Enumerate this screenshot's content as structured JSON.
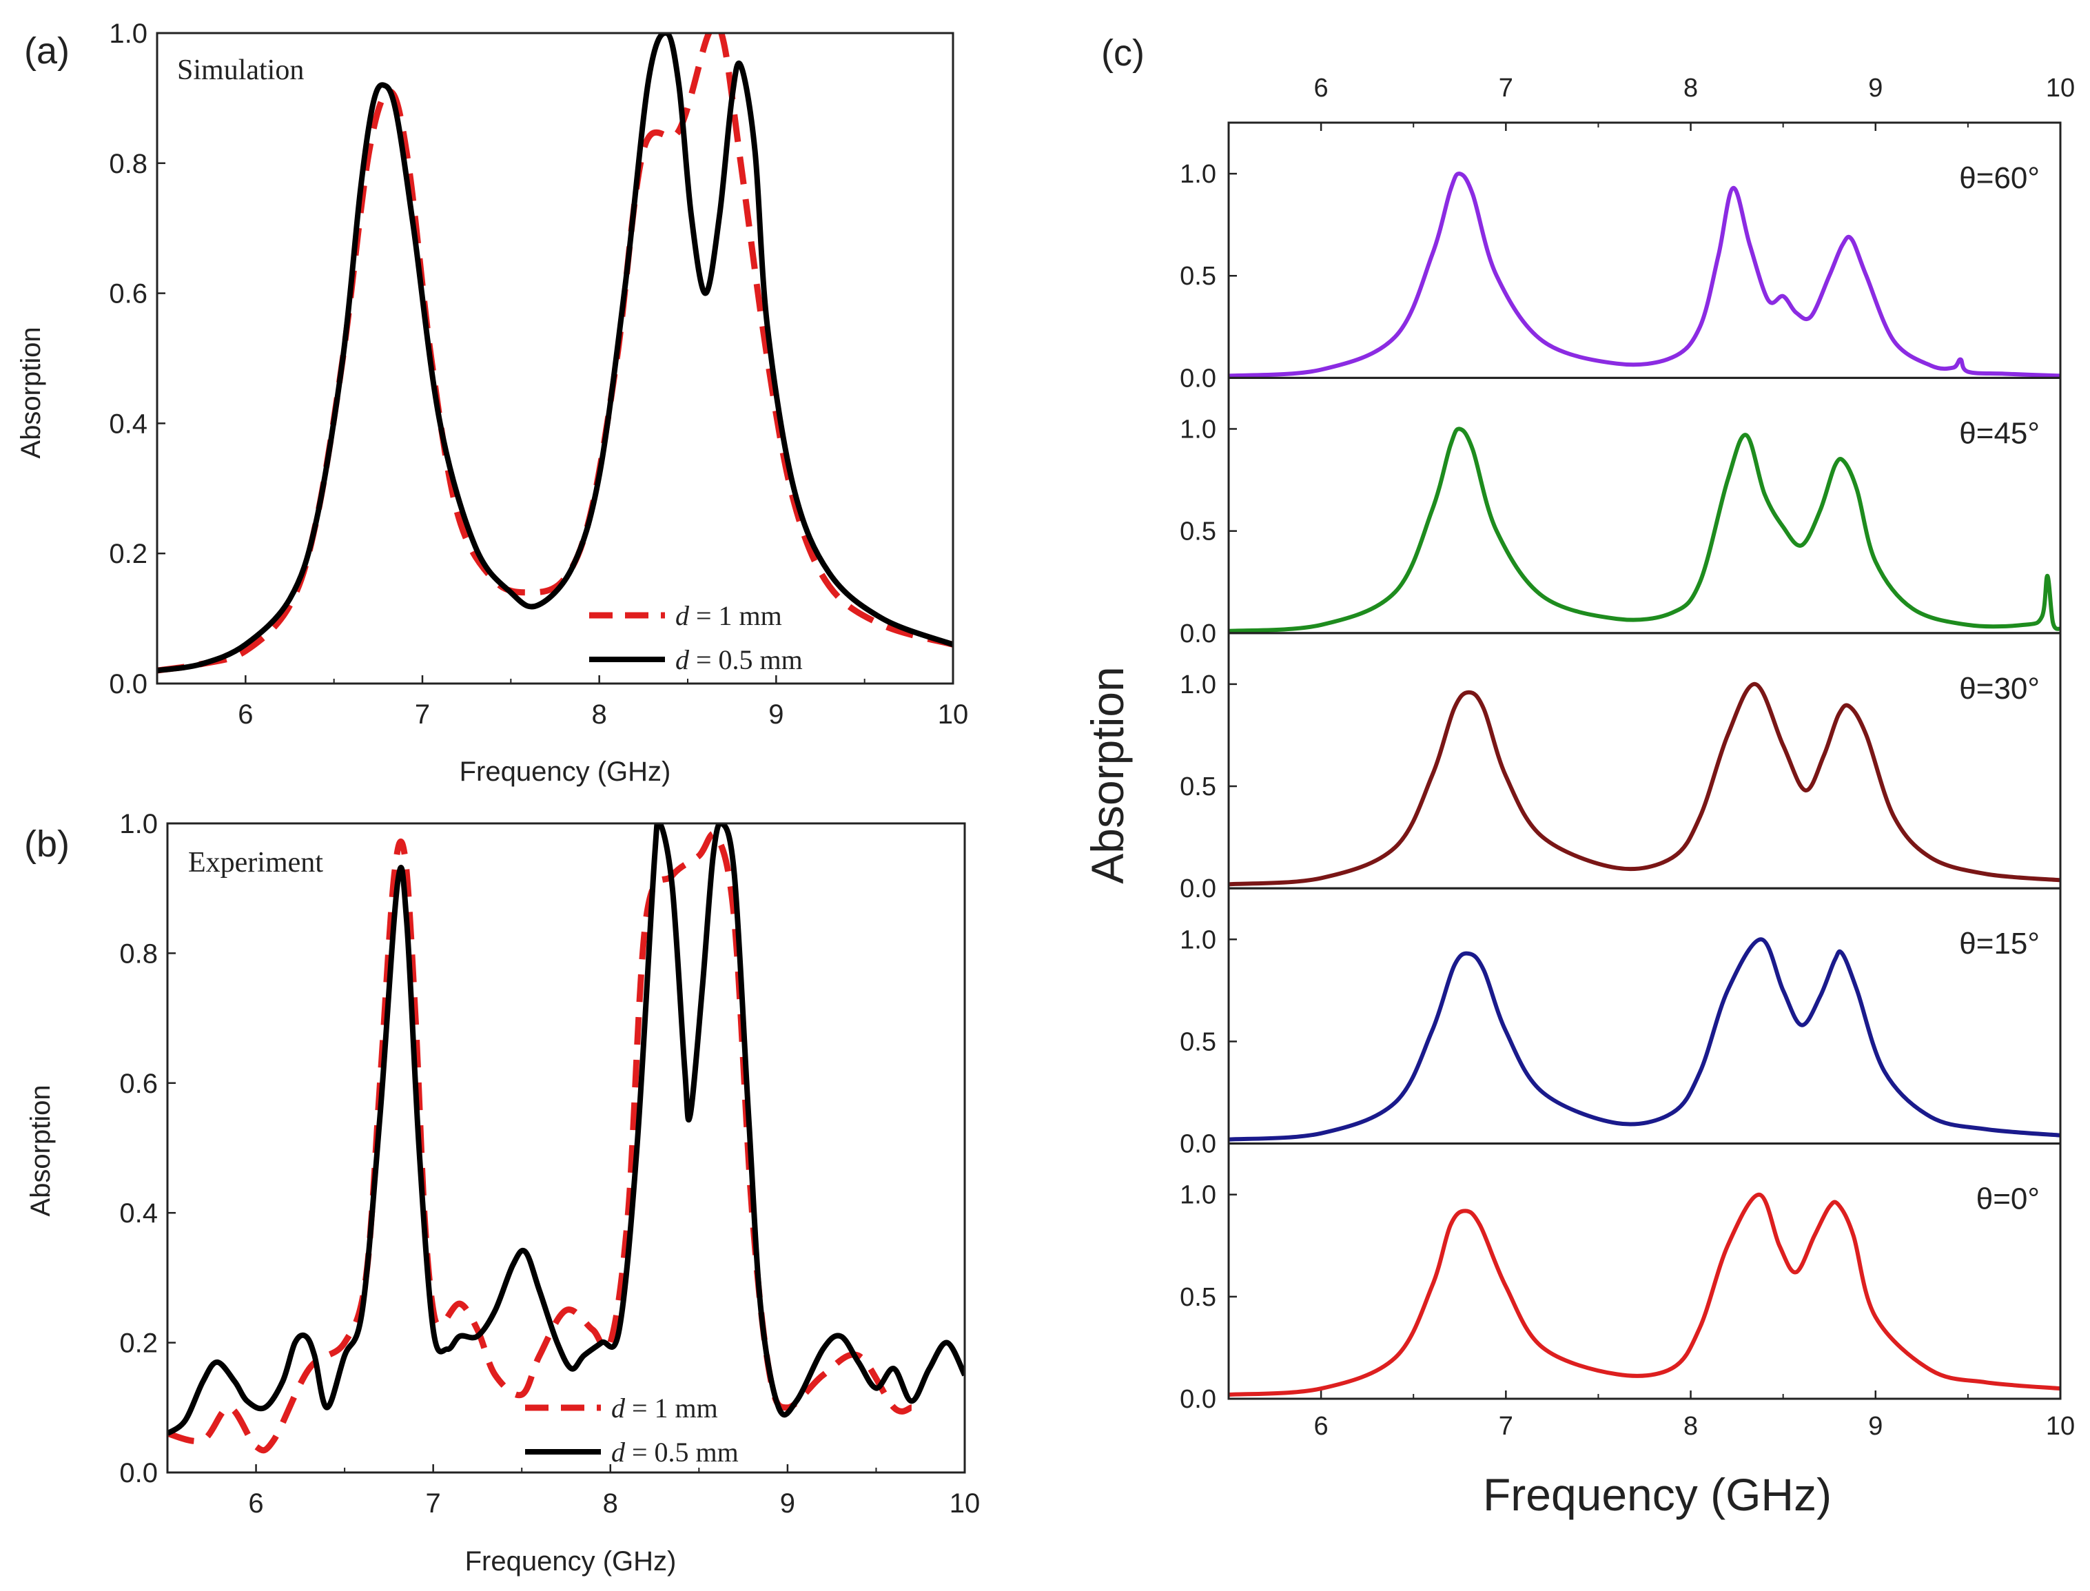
{
  "chart_data": [
    {
      "id": "a",
      "type": "line",
      "panel_label": "(a)",
      "annotation": "Simulation",
      "xlabel": "Frequency (GHz)",
      "ylabel": "Absorption",
      "xlim": [
        5.5,
        10
      ],
      "ylim": [
        0,
        1
      ],
      "xticks": [
        "6",
        "7",
        "8",
        "9",
        "10"
      ],
      "yticks": [
        "0.0",
        "0.2",
        "0.4",
        "0.6",
        "0.8",
        "1.0"
      ],
      "legend": [
        {
          "symbol": "d",
          "text": " = 1 mm",
          "style": "dashed",
          "color": "#e01e1e"
        },
        {
          "symbol": "d",
          "text": " = 0.5 mm",
          "style": "solid",
          "color": "#000000"
        }
      ],
      "series": [
        {
          "name": "d = 1 mm",
          "style": "dashed",
          "color": "#e01e1e",
          "x": [
            5.5,
            5.75,
            6.0,
            6.25,
            6.4,
            6.55,
            6.7,
            6.82,
            6.92,
            7.05,
            7.2,
            7.4,
            7.6,
            7.8,
            7.95,
            8.1,
            8.25,
            8.45,
            8.62,
            8.7,
            8.8,
            8.95,
            9.1,
            9.3,
            9.6,
            10.0
          ],
          "values": [
            0.02,
            0.03,
            0.05,
            0.12,
            0.25,
            0.5,
            0.82,
            0.91,
            0.8,
            0.5,
            0.26,
            0.16,
            0.14,
            0.16,
            0.26,
            0.5,
            0.82,
            0.85,
            1.0,
            0.99,
            0.8,
            0.5,
            0.28,
            0.15,
            0.09,
            0.06
          ]
        },
        {
          "name": "d = 0.5 mm",
          "style": "solid",
          "color": "#000000",
          "x": [
            5.5,
            5.75,
            6.0,
            6.25,
            6.4,
            6.55,
            6.65,
            6.72,
            6.78,
            6.85,
            6.95,
            7.1,
            7.3,
            7.5,
            7.65,
            7.85,
            8.0,
            8.15,
            8.28,
            8.38,
            8.45,
            8.52,
            8.6,
            8.68,
            8.75,
            8.8,
            8.88,
            8.95,
            9.1,
            9.3,
            9.6,
            10.0
          ],
          "values": [
            0.02,
            0.03,
            0.06,
            0.13,
            0.25,
            0.5,
            0.76,
            0.89,
            0.92,
            0.88,
            0.7,
            0.4,
            0.21,
            0.14,
            0.12,
            0.18,
            0.32,
            0.62,
            0.93,
            1.0,
            0.92,
            0.72,
            0.6,
            0.72,
            0.9,
            0.95,
            0.82,
            0.55,
            0.3,
            0.17,
            0.1,
            0.06
          ]
        }
      ]
    },
    {
      "id": "b",
      "type": "line",
      "panel_label": "(b)",
      "annotation": "Experiment",
      "xlabel": "Frequency (GHz)",
      "ylabel": "Absorption",
      "xlim": [
        5.5,
        10
      ],
      "ylim": [
        0,
        1
      ],
      "xticks": [
        "6",
        "7",
        "8",
        "9",
        "10"
      ],
      "yticks": [
        "0.0",
        "0.2",
        "0.4",
        "0.6",
        "0.8",
        "1.0"
      ],
      "legend": [
        {
          "symbol": "d",
          "text": " = 1 mm",
          "style": "dashed",
          "color": "#e01e1e"
        },
        {
          "symbol": "d",
          "text": " = 0.5 mm",
          "style": "solid",
          "color": "#000000"
        }
      ],
      "series": [
        {
          "name": "d = 1 mm",
          "style": "dashed",
          "color": "#e01e1e",
          "x": [
            5.5,
            5.7,
            5.85,
            6.0,
            6.1,
            6.3,
            6.5,
            6.62,
            6.7,
            6.78,
            6.84,
            6.9,
            6.95,
            7.0,
            7.05,
            7.15,
            7.25,
            7.35,
            7.5,
            7.6,
            7.75,
            7.9,
            8.0,
            8.1,
            8.2,
            8.35,
            8.5,
            8.6,
            8.7,
            8.8,
            8.9,
            9.0,
            9.2,
            9.4,
            9.6,
            9.7
          ],
          "values": [
            0.06,
            0.05,
            0.1,
            0.04,
            0.05,
            0.16,
            0.2,
            0.3,
            0.6,
            0.92,
            0.95,
            0.7,
            0.4,
            0.25,
            0.23,
            0.26,
            0.22,
            0.15,
            0.12,
            0.18,
            0.25,
            0.22,
            0.2,
            0.4,
            0.85,
            0.92,
            0.95,
            0.98,
            0.85,
            0.4,
            0.15,
            0.1,
            0.15,
            0.18,
            0.1,
            0.1
          ]
        },
        {
          "name": "d = 0.5 mm",
          "style": "solid",
          "color": "#000000",
          "x": [
            5.5,
            5.6,
            5.7,
            5.78,
            5.88,
            5.95,
            6.05,
            6.15,
            6.22,
            6.28,
            6.33,
            6.4,
            6.5,
            6.6,
            6.7,
            6.8,
            6.85,
            6.92,
            7.0,
            7.08,
            7.15,
            7.25,
            7.35,
            7.45,
            7.52,
            7.6,
            7.7,
            7.78,
            7.85,
            7.95,
            8.05,
            8.15,
            8.25,
            8.28,
            8.35,
            8.42,
            8.45,
            8.52,
            8.58,
            8.63,
            8.7,
            8.78,
            8.85,
            8.95,
            9.05,
            9.2,
            9.3,
            9.4,
            9.5,
            9.6,
            9.7,
            9.8,
            9.9,
            10.0
          ],
          "values": [
            0.06,
            0.08,
            0.14,
            0.17,
            0.14,
            0.11,
            0.1,
            0.14,
            0.2,
            0.21,
            0.18,
            0.1,
            0.18,
            0.25,
            0.55,
            0.91,
            0.85,
            0.5,
            0.22,
            0.19,
            0.21,
            0.21,
            0.25,
            0.32,
            0.34,
            0.28,
            0.2,
            0.16,
            0.18,
            0.2,
            0.22,
            0.5,
            0.95,
            1.0,
            0.9,
            0.62,
            0.55,
            0.75,
            0.95,
            1.0,
            0.92,
            0.55,
            0.25,
            0.1,
            0.11,
            0.19,
            0.21,
            0.17,
            0.13,
            0.16,
            0.11,
            0.16,
            0.2,
            0.15
          ]
        }
      ]
    },
    {
      "id": "c",
      "type": "line",
      "panel_label": "(c)",
      "xlabel": "Frequency (GHz)",
      "ylabel": "Absorption",
      "xlim": [
        5.5,
        10
      ],
      "ylim": [
        0,
        1.25
      ],
      "xticks": [
        "6",
        "7",
        "8",
        "9",
        "10"
      ],
      "yticks": [
        "0.0",
        "0.5",
        "1.0"
      ],
      "subpanels": [
        {
          "label": "θ=60°",
          "angle": "60",
          "color": "#8b2be2",
          "x": [
            5.5,
            6.0,
            6.4,
            6.6,
            6.7,
            6.75,
            6.82,
            6.95,
            7.2,
            7.6,
            7.9,
            8.05,
            8.15,
            8.23,
            8.32,
            8.42,
            8.5,
            8.57,
            8.65,
            8.75,
            8.82,
            8.87,
            8.95,
            9.1,
            9.3,
            9.42,
            9.46,
            9.5,
            9.7,
            10.0
          ],
          "values": [
            0.01,
            0.04,
            0.2,
            0.6,
            0.92,
            1.0,
            0.9,
            0.5,
            0.18,
            0.07,
            0.1,
            0.25,
            0.6,
            0.93,
            0.65,
            0.38,
            0.4,
            0.32,
            0.3,
            0.5,
            0.65,
            0.68,
            0.5,
            0.18,
            0.06,
            0.05,
            0.09,
            0.03,
            0.02,
            0.01
          ]
        },
        {
          "label": "θ=45°",
          "angle": "45",
          "color": "#1e8c1e",
          "x": [
            5.5,
            6.0,
            6.4,
            6.6,
            6.7,
            6.75,
            6.82,
            6.95,
            7.2,
            7.6,
            7.9,
            8.05,
            8.2,
            8.3,
            8.4,
            8.5,
            8.6,
            8.7,
            8.78,
            8.83,
            8.9,
            9.0,
            9.2,
            9.5,
            9.8,
            9.9,
            9.93,
            9.96,
            10.0
          ],
          "values": [
            0.01,
            0.04,
            0.2,
            0.6,
            0.92,
            1.0,
            0.9,
            0.5,
            0.18,
            0.07,
            0.1,
            0.25,
            0.75,
            0.97,
            0.68,
            0.52,
            0.43,
            0.6,
            0.82,
            0.84,
            0.7,
            0.35,
            0.12,
            0.04,
            0.04,
            0.08,
            0.28,
            0.05,
            0.02
          ]
        },
        {
          "label": "θ=30°",
          "angle": "30",
          "color": "#7a1616",
          "x": [
            5.5,
            6.0,
            6.4,
            6.6,
            6.72,
            6.8,
            6.88,
            7.0,
            7.2,
            7.6,
            7.9,
            8.05,
            8.2,
            8.35,
            8.5,
            8.62,
            8.72,
            8.8,
            8.86,
            8.95,
            9.1,
            9.3,
            9.6,
            10.0
          ],
          "values": [
            0.02,
            0.05,
            0.2,
            0.55,
            0.88,
            0.96,
            0.88,
            0.55,
            0.25,
            0.1,
            0.15,
            0.35,
            0.75,
            1.0,
            0.7,
            0.48,
            0.65,
            0.85,
            0.89,
            0.75,
            0.35,
            0.15,
            0.07,
            0.04
          ]
        },
        {
          "label": "θ=15°",
          "angle": "15",
          "color": "#1a1a8c",
          "x": [
            5.5,
            6.0,
            6.4,
            6.6,
            6.72,
            6.8,
            6.88,
            7.0,
            7.2,
            7.6,
            7.9,
            8.05,
            8.2,
            8.38,
            8.5,
            8.6,
            8.7,
            8.78,
            8.82,
            8.9,
            9.05,
            9.3,
            9.6,
            10.0
          ],
          "values": [
            0.02,
            0.05,
            0.2,
            0.55,
            0.87,
            0.93,
            0.85,
            0.55,
            0.25,
            0.1,
            0.15,
            0.35,
            0.75,
            1.0,
            0.75,
            0.58,
            0.72,
            0.9,
            0.93,
            0.75,
            0.35,
            0.13,
            0.07,
            0.04
          ]
        },
        {
          "label": "θ=0°",
          "angle": "0",
          "color": "#dd1f1f",
          "x": [
            5.5,
            6.0,
            6.4,
            6.6,
            6.7,
            6.78,
            6.86,
            7.0,
            7.2,
            7.6,
            7.9,
            8.05,
            8.2,
            8.37,
            8.48,
            8.57,
            8.67,
            8.75,
            8.8,
            8.88,
            9.0,
            9.3,
            9.6,
            10.0
          ],
          "values": [
            0.02,
            0.05,
            0.2,
            0.55,
            0.85,
            0.92,
            0.85,
            0.55,
            0.25,
            0.12,
            0.15,
            0.35,
            0.75,
            1.0,
            0.75,
            0.62,
            0.8,
            0.94,
            0.95,
            0.8,
            0.4,
            0.14,
            0.08,
            0.05
          ]
        }
      ]
    }
  ]
}
